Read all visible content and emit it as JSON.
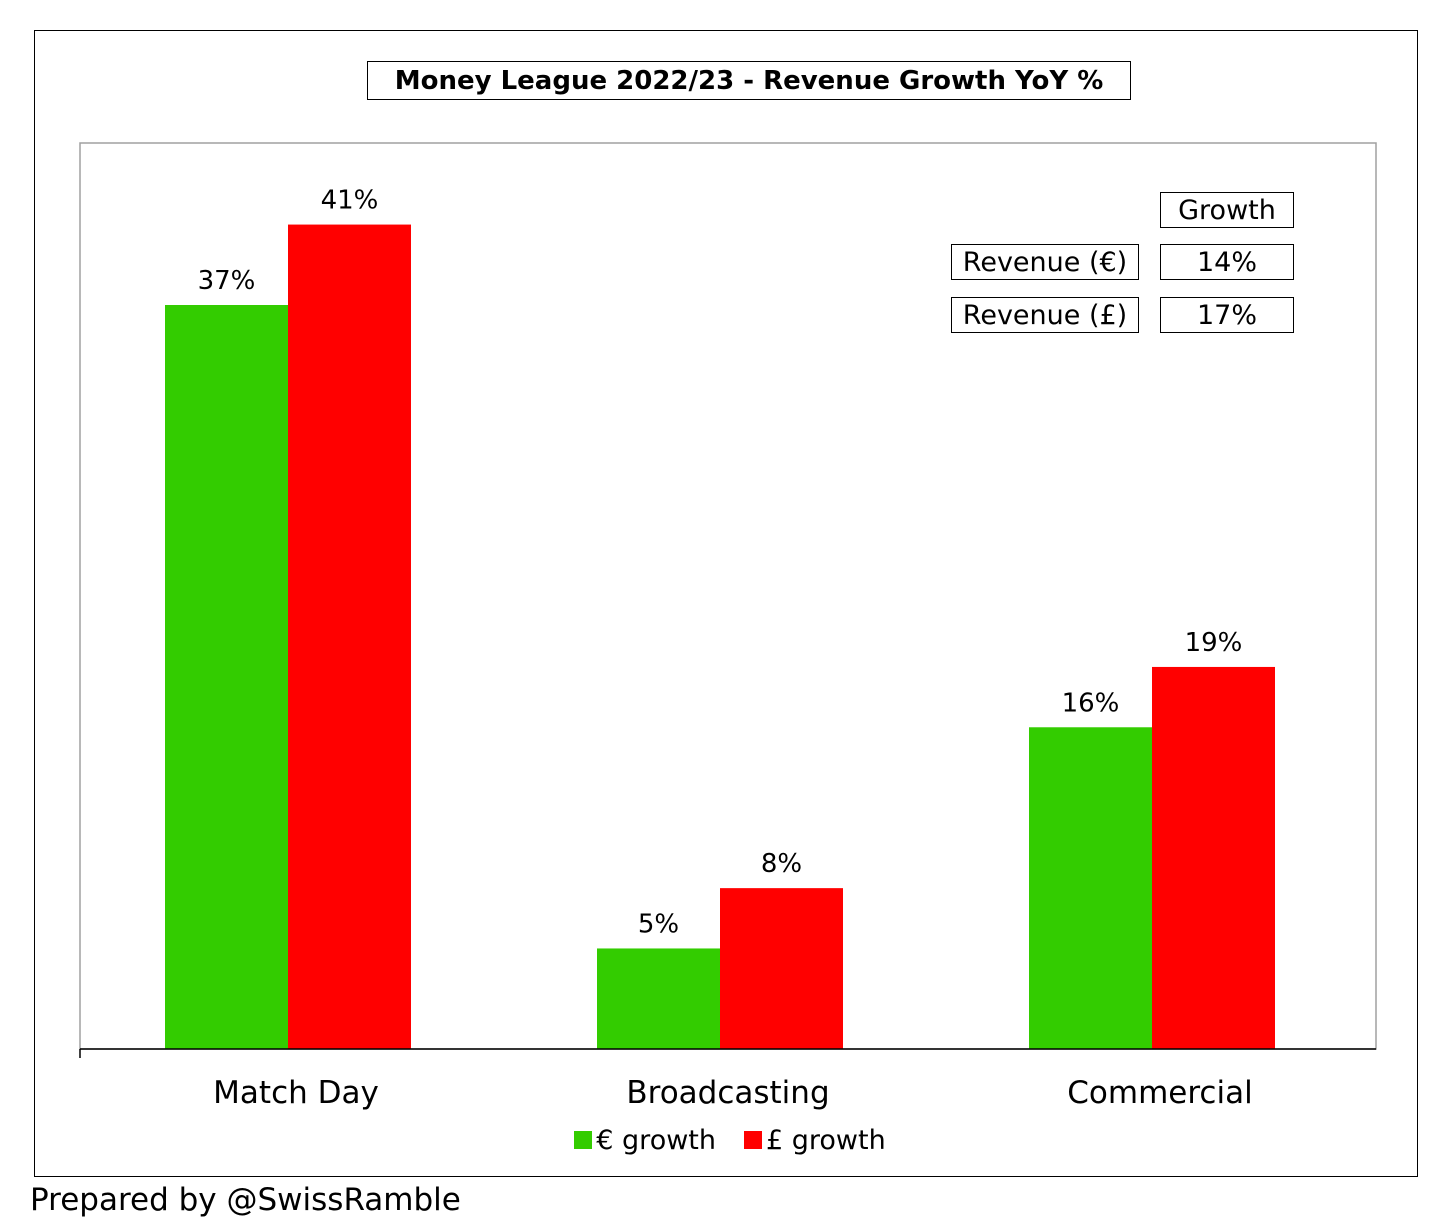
{
  "chart_data": {
    "type": "bar",
    "title": "Money League 2022/23 - Revenue Growth YoY %",
    "categories": [
      "Match Day",
      "Broadcasting",
      "Commercial"
    ],
    "series": [
      {
        "name": "€ growth",
        "color": "#33cc00",
        "values": [
          37,
          5,
          16
        ],
        "labels": [
          "37%",
          "5%",
          "16%"
        ]
      },
      {
        "name": "£ growth",
        "color": "#ff0000",
        "values": [
          41,
          8,
          19
        ],
        "labels": [
          "41%",
          "8%",
          "19%"
        ]
      }
    ],
    "ylim": [
      0,
      45
    ],
    "grid": false,
    "legend": "bottom",
    "summary_table": {
      "header": "Growth",
      "rows": [
        {
          "label": "Revenue (€)",
          "value": "14%"
        },
        {
          "label": "Revenue (£)",
          "value": "17%"
        }
      ]
    }
  },
  "footer": "Prepared by @SwissRamble"
}
